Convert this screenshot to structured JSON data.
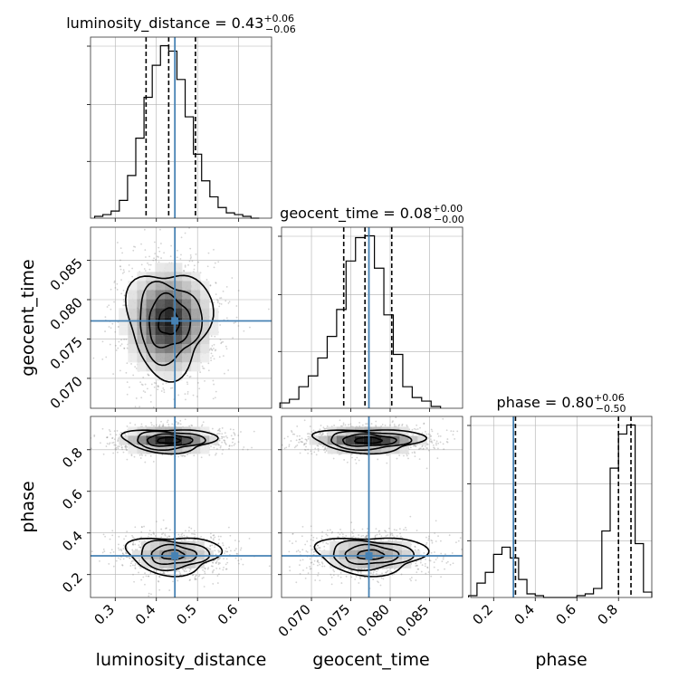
{
  "chart_data": [
    {
      "type": "histogram",
      "panel": "luminosity_distance-1d",
      "title": {
        "base": "luminosity_distance = 0.43",
        "sup": "+0.06",
        "sub": "−0.06"
      },
      "x": [
        0.26,
        0.28,
        0.3,
        0.32,
        0.34,
        0.36,
        0.38,
        0.4,
        0.42,
        0.44,
        0.46,
        0.48,
        0.5,
        0.52,
        0.54,
        0.56,
        0.58,
        0.6,
        0.62,
        0.64
      ],
      "density": [
        0.01,
        0.02,
        0.04,
        0.1,
        0.24,
        0.45,
        0.68,
        0.86,
        0.97,
        0.94,
        0.78,
        0.57,
        0.36,
        0.21,
        0.12,
        0.06,
        0.03,
        0.02,
        0.01,
        0.0
      ],
      "quantiles": [
        0.375,
        0.43,
        0.495
      ],
      "truth": 0.445,
      "xlim": [
        0.24,
        0.68
      ]
    },
    {
      "type": "histogram",
      "panel": "geocent_time-1d",
      "title": {
        "base": "geocent_time = 0.08",
        "sup": "+0.00",
        "sub": "−0.00"
      },
      "x": [
        0.0666,
        0.0678,
        0.069,
        0.0702,
        0.0714,
        0.0726,
        0.0738,
        0.075,
        0.0762,
        0.0774,
        0.0786,
        0.0798,
        0.081,
        0.0822,
        0.0834,
        0.0846,
        0.0858
      ],
      "density": [
        0.03,
        0.05,
        0.12,
        0.18,
        0.28,
        0.4,
        0.55,
        0.82,
        0.95,
        0.96,
        0.78,
        0.52,
        0.3,
        0.12,
        0.06,
        0.04,
        0.01
      ],
      "quantiles": [
        0.0741,
        0.0768,
        0.0802
      ],
      "truth": 0.0773,
      "xlim": [
        0.0662,
        0.0892
      ]
    },
    {
      "type": "histogram",
      "panel": "phase-1d",
      "title": {
        "base": "phase = 0.80",
        "sup": "+0.06",
        "sub": "−0.50"
      },
      "x": [
        0.1,
        0.14,
        0.18,
        0.22,
        0.26,
        0.3,
        0.34,
        0.38,
        0.42,
        0.46,
        0.5,
        0.54,
        0.58,
        0.62,
        0.66,
        0.7,
        0.74,
        0.78,
        0.82,
        0.86,
        0.9,
        0.94
      ],
      "density": [
        0.01,
        0.08,
        0.14,
        0.24,
        0.28,
        0.22,
        0.1,
        0.02,
        0.01,
        0.0,
        0.0,
        0.0,
        0.0,
        0.01,
        0.02,
        0.05,
        0.37,
        0.72,
        0.91,
        0.96,
        0.3,
        0.03
      ],
      "quantiles": [
        0.305,
        0.8,
        0.86
      ],
      "truth": 0.295,
      "xlim": [
        0.09,
        0.96
      ]
    },
    {
      "type": "contour",
      "panel": "luminosity_distance-vs-geocent_time",
      "center": [
        0.43,
        0.0772
      ],
      "sigma_levels": [
        0.5,
        1,
        1.5,
        2
      ],
      "spread": [
        0.05,
        0.0033
      ],
      "truth": [
        0.445,
        0.0773
      ]
    },
    {
      "type": "contour",
      "panel": "luminosity_distance-vs-phase",
      "modes": [
        {
          "center": [
            0.43,
            0.845
          ],
          "spread": [
            0.055,
            0.028
          ]
        },
        {
          "center": [
            0.44,
            0.295
          ],
          "spread": [
            0.055,
            0.045
          ]
        }
      ],
      "truth": [
        0.445,
        0.29
      ]
    },
    {
      "type": "contour",
      "panel": "geocent_time-vs-phase",
      "modes": [
        {
          "center": [
            0.0772,
            0.845
          ],
          "spread": [
            0.0034,
            0.028
          ]
        },
        {
          "center": [
            0.0775,
            0.295
          ],
          "spread": [
            0.0034,
            0.045
          ]
        }
      ],
      "truth": [
        0.0773,
        0.29
      ]
    }
  ],
  "axes": {
    "x_labels": [
      "luminosity_distance",
      "geocent_time",
      "phase"
    ],
    "y_labels": [
      "geocent_time",
      "phase"
    ],
    "ticks": {
      "luminosity_distance": [
        "0.3",
        "0.4",
        "0.5",
        "0.6"
      ],
      "luminosity_distance_values": [
        0.3,
        0.4,
        0.5,
        0.6
      ],
      "geocent_time": [
        "0.070",
        "0.075",
        "0.080",
        "0.085"
      ],
      "geocent_time_values": [
        0.07,
        0.075,
        0.08,
        0.085
      ],
      "phase_x": [
        "0.2",
        "0.4",
        "0.6",
        "0.8"
      ],
      "phase_x_values": [
        0.2,
        0.4,
        0.6,
        0.8
      ],
      "phase_y": [
        "0.2",
        "0.4",
        "0.6",
        "0.8"
      ],
      "phase_y_values": [
        0.2,
        0.4,
        0.6,
        0.8
      ]
    },
    "phase_ylim": [
      0.09,
      0.96
    ],
    "geocent_ylim": [
      0.0662,
      0.0892
    ]
  },
  "colors": {
    "truth": "#4682b4",
    "hist": "#000000",
    "grid": "#b0b0b0",
    "samples": "#808080"
  }
}
